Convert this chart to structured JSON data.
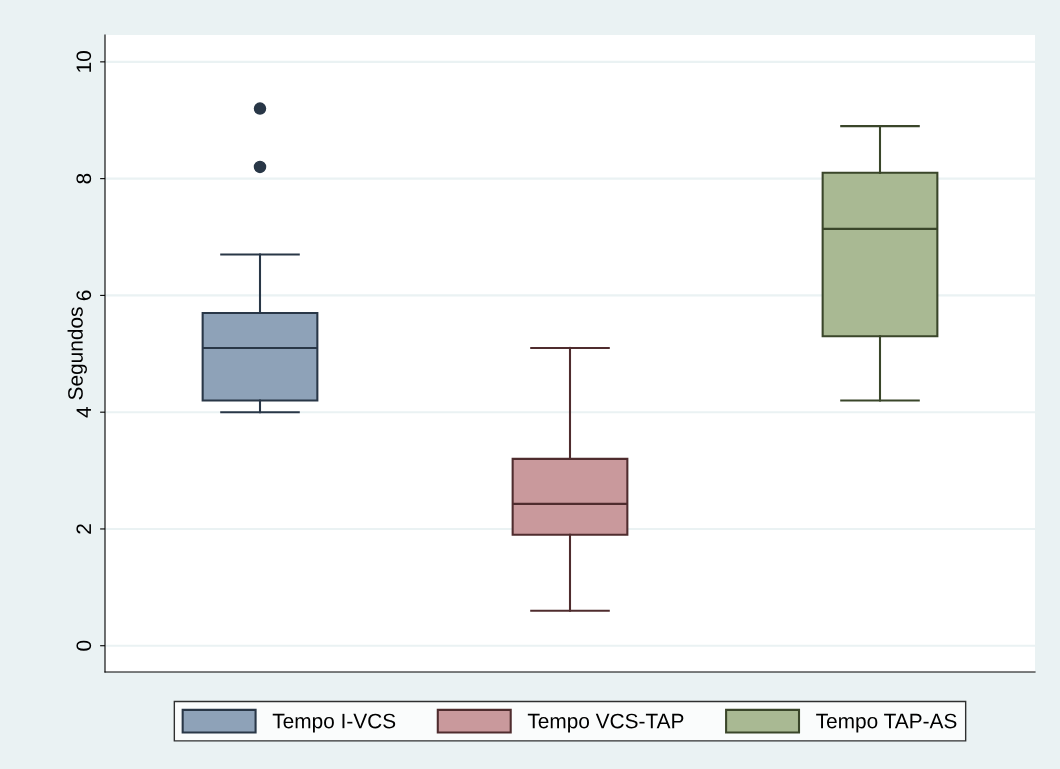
{
  "chart_data": {
    "type": "box",
    "ylabel": "Segundos",
    "categories": [
      null,
      null,
      null
    ],
    "series": [
      {
        "name": "Tempo I-VCS",
        "color": "#8ea2b8",
        "boxes": [
          {
            "low": 4.0,
            "q1": 4.2,
            "median": 5.1,
            "q3": 5.7,
            "high": 6.7,
            "outliers": [
              8.2,
              9.2
            ]
          },
          null,
          null
        ]
      },
      {
        "name": "Tempo VCS-TAP",
        "color": "#c9999c",
        "boxes": [
          null,
          {
            "low": 0.6,
            "q1": 1.9,
            "median": 2.43,
            "q3": 3.2,
            "high": 5.1
          },
          null
        ]
      },
      {
        "name": "Tempo TAP-AS",
        "color": "#a9b993",
        "boxes": [
          null,
          null,
          {
            "low": 4.2,
            "q1": 5.3,
            "median": 7.14,
            "q3": 8.1,
            "high": 8.9
          }
        ]
      }
    ],
    "ylim": [
      -0.45,
      10.46
    ],
    "yticks": [
      0,
      2,
      4,
      6,
      8,
      10
    ],
    "grid": "y",
    "legend": "bottom"
  }
}
